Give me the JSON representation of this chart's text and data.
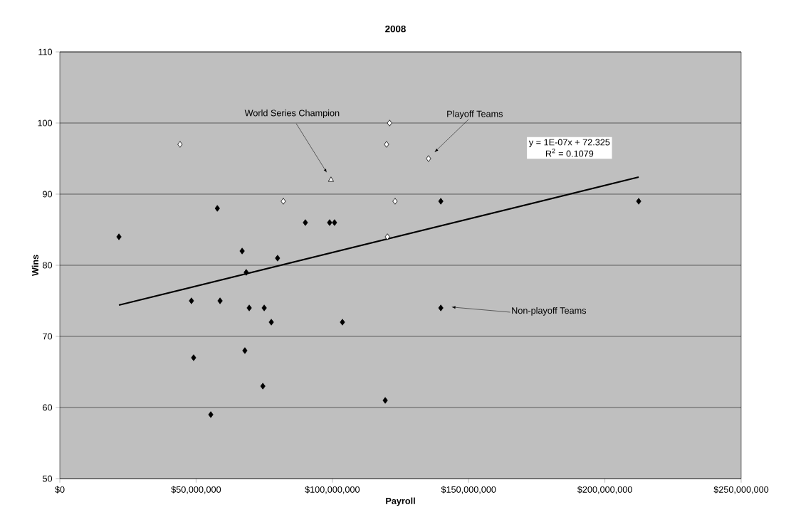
{
  "chart_data": {
    "type": "scatter",
    "title": "2008",
    "xlabel": "Payroll",
    "ylabel": "Wins",
    "xlim": [
      0,
      250000000
    ],
    "ylim": [
      50,
      110
    ],
    "xticks": [
      {
        "value": 0,
        "label": "$0"
      },
      {
        "value": 50000000,
        "label": "$50,000,000"
      },
      {
        "value": 100000000,
        "label": "$100,000,000"
      },
      {
        "value": 150000000,
        "label": "$150,000,000"
      },
      {
        "value": 200000000,
        "label": "$200,000,000"
      },
      {
        "value": 250000000,
        "label": "$250,000,000"
      }
    ],
    "yticks": [
      50,
      60,
      70,
      80,
      90,
      100,
      110
    ],
    "grid": "y",
    "series": [
      {
        "color": "#000000",
        "marker": "diamond",
        "x": [
          21700000,
          57800000,
          66900000,
          79900000,
          68400000,
          48300000,
          58800000,
          69500000,
          75000000,
          77600000,
          67900000,
          49100000,
          74500000,
          55400000,
          90100000,
          99000000,
          100800000,
          139800000,
          139800000,
          103700000,
          119400000,
          212400000
        ],
        "values": [
          84,
          88,
          82,
          81,
          79,
          75,
          75,
          74,
          74,
          72,
          68,
          67,
          63,
          59,
          86,
          86,
          86,
          89,
          74,
          72,
          61,
          89
        ]
      },
      {
        "color": "#ffffff",
        "marker": "diamond",
        "x": [
          44100000,
          82000000,
          121000000,
          119900000,
          135300000,
          123000000,
          120200000
        ],
        "values": [
          97,
          89,
          100,
          97,
          95,
          89,
          84
        ]
      },
      {
        "color": "#ffffff",
        "marker": "triangle",
        "x": [
          99500000
        ],
        "values": [
          92
        ]
      },
      {
        "type": "line",
        "color": "#000000",
        "marker": "none",
        "line_style": "solid",
        "x": [
          21700000,
          212400000
        ],
        "values": [
          74.4,
          92.4
        ]
      }
    ],
    "annotations": [
      "World Series Champion",
      "Playoff Teams",
      "Non-playoff Teams",
      "y = 1E-07x + 72.325",
      "R$^{2}$ = 0.1079"
    ]
  }
}
